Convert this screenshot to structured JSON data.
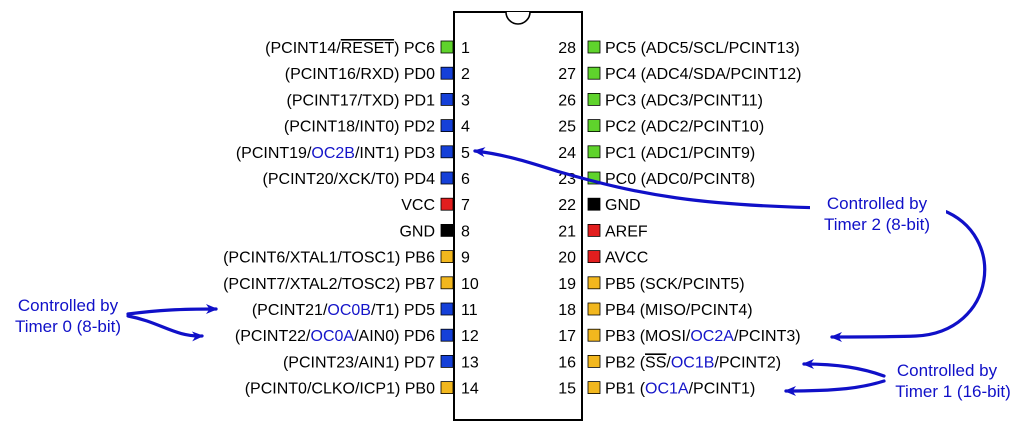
{
  "colors": {
    "port_c": "#5fd32c",
    "port_d": "#1540d8",
    "port_b": "#f2b71e",
    "power": "#e21e1e",
    "ground": "#000000",
    "highlight_text": "#1515c9",
    "arrow": "#1010c8"
  },
  "pins": [
    {
      "number": "1",
      "segments": [
        {
          "t": "(PCINT14/"
        },
        {
          "t": "RESET",
          "over": true
        },
        {
          "t": ") PC6"
        }
      ],
      "type": "port_c"
    },
    {
      "number": "2",
      "segments": [
        {
          "t": "(PCINT16/RXD) PD0"
        }
      ],
      "type": "port_d"
    },
    {
      "number": "3",
      "segments": [
        {
          "t": "(PCINT17/TXD) PD1"
        }
      ],
      "type": "port_d"
    },
    {
      "number": "4",
      "segments": [
        {
          "t": "(PCINT18/INT0) PD2"
        }
      ],
      "type": "port_d"
    },
    {
      "number": "5",
      "segments": [
        {
          "t": "(PCINT19/"
        },
        {
          "t": "OC2B",
          "hl": true
        },
        {
          "t": "/INT1) PD3"
        }
      ],
      "type": "port_d"
    },
    {
      "number": "6",
      "segments": [
        {
          "t": "(PCINT20/XCK/T0) PD4"
        }
      ],
      "type": "port_d"
    },
    {
      "number": "7",
      "segments": [
        {
          "t": "VCC"
        }
      ],
      "type": "power"
    },
    {
      "number": "8",
      "segments": [
        {
          "t": "GND"
        }
      ],
      "type": "ground"
    },
    {
      "number": "9",
      "segments": [
        {
          "t": "(PCINT6/XTAL1/TOSC1) PB6"
        }
      ],
      "type": "port_b"
    },
    {
      "number": "10",
      "segments": [
        {
          "t": "(PCINT7/XTAL2/TOSC2) PB7"
        }
      ],
      "type": "port_b"
    },
    {
      "number": "11",
      "segments": [
        {
          "t": "(PCINT21/"
        },
        {
          "t": "OC0B",
          "hl": true
        },
        {
          "t": "/T1) PD5"
        }
      ],
      "type": "port_d"
    },
    {
      "number": "12",
      "segments": [
        {
          "t": "(PCINT22/"
        },
        {
          "t": "OC0A",
          "hl": true
        },
        {
          "t": "/AIN0) PD6"
        }
      ],
      "type": "port_d"
    },
    {
      "number": "13",
      "segments": [
        {
          "t": "(PCINT23/AIN1) PD7"
        }
      ],
      "type": "port_d"
    },
    {
      "number": "14",
      "segments": [
        {
          "t": "(PCINT0/CLKO/ICP1) PB0"
        }
      ],
      "type": "port_b"
    },
    {
      "number": "15",
      "segments": [
        {
          "t": "PB1 ("
        },
        {
          "t": "OC1A",
          "hl": true
        },
        {
          "t": "/PCINT1)"
        }
      ],
      "type": "port_b"
    },
    {
      "number": "16",
      "segments": [
        {
          "t": "PB2 ("
        },
        {
          "t": "SS",
          "over": true
        },
        {
          "t": "/"
        },
        {
          "t": "OC1B",
          "hl": true
        },
        {
          "t": "/PCINT2)"
        }
      ],
      "type": "port_b"
    },
    {
      "number": "17",
      "segments": [
        {
          "t": "PB3 (MOSI/"
        },
        {
          "t": "OC2A",
          "hl": true
        },
        {
          "t": "/PCINT3)"
        }
      ],
      "type": "port_b"
    },
    {
      "number": "18",
      "segments": [
        {
          "t": "PB4 (MISO/PCINT4)"
        }
      ],
      "type": "port_b"
    },
    {
      "number": "19",
      "segments": [
        {
          "t": "PB5 (SCK/PCINT5)"
        }
      ],
      "type": "port_b"
    },
    {
      "number": "20",
      "segments": [
        {
          "t": "AVCC"
        }
      ],
      "type": "power"
    },
    {
      "number": "21",
      "segments": [
        {
          "t": "AREF"
        }
      ],
      "type": "power"
    },
    {
      "number": "22",
      "segments": [
        {
          "t": "GND"
        }
      ],
      "type": "ground"
    },
    {
      "number": "23",
      "segments": [
        {
          "t": "PC0 (ADC0/PCINT8)"
        }
      ],
      "type": "port_c"
    },
    {
      "number": "24",
      "segments": [
        {
          "t": "PC1 (ADC1/PCINT9)"
        }
      ],
      "type": "port_c"
    },
    {
      "number": "25",
      "segments": [
        {
          "t": "PC2 (ADC2/PCINT10)"
        }
      ],
      "type": "port_c"
    },
    {
      "number": "26",
      "segments": [
        {
          "t": "PC3 (ADC3/PCINT11)"
        }
      ],
      "type": "port_c"
    },
    {
      "number": "27",
      "segments": [
        {
          "t": "PC4 (ADC4/SDA/PCINT12)"
        }
      ],
      "type": "port_c"
    },
    {
      "number": "28",
      "segments": [
        {
          "t": "PC5 (ADC5/SCL/PCINT13)"
        }
      ],
      "type": "port_c"
    }
  ],
  "annotations": {
    "timer0": {
      "line1": "Controlled by",
      "line2": "Timer 0 (8-bit)"
    },
    "timer1": {
      "line1": "Controlled by",
      "line2": "Timer 1 (16-bit)"
    },
    "timer2": {
      "line1": "Controlled by",
      "line2": "Timer 2 (8-bit)"
    }
  }
}
